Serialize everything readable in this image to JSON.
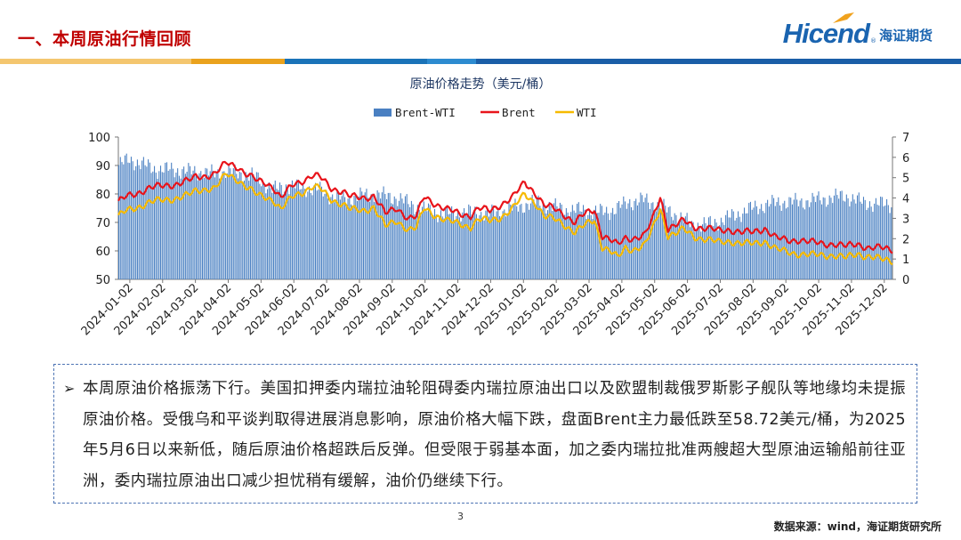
{
  "header": {
    "section_title": "一、本周原油行情回顾",
    "logo_en": "Hicend",
    "logo_reg": "®",
    "logo_cn": "海证期货"
  },
  "band_colors": [
    "#f4c66f",
    "#eaa21d",
    "#1a73b8",
    "#2d8bd0",
    "#1a5ea7"
  ],
  "chart_data": {
    "type": "bar+line",
    "title": "原油价格走势（美元/桶）",
    "legend": [
      "Brent-WTI",
      "Brent",
      "WTI"
    ],
    "legend_position": "top-center",
    "colors": {
      "Brent-WTI": "#4a80c2",
      "Brent": "#e8141b",
      "WTI": "#f6ba00"
    },
    "left_axis": {
      "ylim": [
        50,
        100
      ],
      "ticks": [
        "100",
        "90",
        "80",
        "70",
        "60",
        "50"
      ]
    },
    "right_axis": {
      "ylim": [
        0,
        7
      ],
      "ticks": [
        "7",
        "6",
        "5",
        "4",
        "3",
        "2",
        "1",
        "0"
      ]
    },
    "x_range": [
      "2024-01-02",
      "2025-12-31"
    ],
    "x_tick_labels": [
      "2024-01-02",
      "2024-02-02",
      "2024-03-02",
      "2024-04-02",
      "2024-05-02",
      "2024-06-02",
      "2024-07-02",
      "2024-08-02",
      "2024-09-02",
      "2024-10-02",
      "2024-11-02",
      "2024-12-02",
      "2025-01-02",
      "2025-02-02",
      "2025-03-02",
      "2025-04-02",
      "2025-05-02",
      "2025-06-02",
      "2025-07-02",
      "2025-08-02",
      "2025-09-02",
      "2025-10-02",
      "2025-11-02",
      "2025-12-02"
    ],
    "series": [
      {
        "name": "Brent",
        "axis": "left",
        "x": [
          0,
          0.01,
          0.025,
          0.04,
          0.06,
          0.075,
          0.09,
          0.1,
          0.115,
          0.125,
          0.14,
          0.155,
          0.165,
          0.18,
          0.19,
          0.2,
          0.21,
          0.225,
          0.24,
          0.25,
          0.26,
          0.275,
          0.29,
          0.3,
          0.315,
          0.33,
          0.345,
          0.36,
          0.375,
          0.385,
          0.395,
          0.41,
          0.425,
          0.44,
          0.455,
          0.465,
          0.48,
          0.495,
          0.51,
          0.525,
          0.54,
          0.55,
          0.565,
          0.575,
          0.59,
          0.6,
          0.615,
          0.625,
          0.635,
          0.645,
          0.655,
          0.665,
          0.68,
          0.69,
          0.7,
          0.71,
          0.72,
          0.73,
          0.745,
          0.76,
          0.775,
          0.79,
          0.805,
          0.82,
          0.835,
          0.85,
          0.865,
          0.88,
          0.895,
          0.91,
          0.925,
          0.94,
          0.955,
          0.97,
          0.985,
          1.0
        ],
        "values": [
          77,
          79,
          80.5,
          82,
          83,
          83.5,
          84.5,
          86,
          86.5,
          87,
          91,
          89.5,
          87,
          84.5,
          84,
          82.5,
          78.5,
          83,
          85,
          86.5,
          86,
          82,
          81,
          79,
          78.5,
          79.5,
          73,
          75,
          71.5,
          72,
          79,
          76.5,
          74.5,
          73,
          72.5,
          75,
          74,
          76.5,
          79,
          84,
          80,
          76,
          74.5,
          73,
          70,
          72.5,
          74.5,
          65.5,
          64,
          62,
          64.5,
          64.5,
          65.5,
          71,
          79,
          68,
          69,
          70.5,
          68.5,
          68,
          67,
          67.5,
          66.5,
          66.5,
          68,
          64.5,
          63.5,
          64,
          63,
          62.5,
          62.5,
          61.5,
          62.5,
          61,
          61,
          60.5
        ]
      },
      {
        "name": "WTI",
        "axis": "left",
        "x": [
          0,
          0.01,
          0.025,
          0.04,
          0.06,
          0.075,
          0.09,
          0.1,
          0.115,
          0.125,
          0.14,
          0.155,
          0.165,
          0.18,
          0.19,
          0.2,
          0.21,
          0.225,
          0.24,
          0.25,
          0.26,
          0.275,
          0.29,
          0.3,
          0.315,
          0.33,
          0.345,
          0.36,
          0.375,
          0.385,
          0.395,
          0.41,
          0.425,
          0.44,
          0.455,
          0.465,
          0.48,
          0.495,
          0.51,
          0.525,
          0.54,
          0.55,
          0.565,
          0.575,
          0.59,
          0.6,
          0.615,
          0.625,
          0.635,
          0.645,
          0.655,
          0.665,
          0.68,
          0.69,
          0.7,
          0.71,
          0.72,
          0.73,
          0.745,
          0.76,
          0.775,
          0.79,
          0.805,
          0.82,
          0.835,
          0.85,
          0.865,
          0.88,
          0.895,
          0.91,
          0.925,
          0.94,
          0.955,
          0.97,
          0.985,
          1.0
        ],
        "values": [
          72,
          74,
          75.5,
          77,
          78,
          78.5,
          79.5,
          81,
          82,
          82,
          87,
          85,
          82.5,
          79.5,
          79,
          78,
          74.5,
          79,
          81,
          82.5,
          82,
          78,
          76.5,
          74.5,
          74,
          75.5,
          68.5,
          70.5,
          67.5,
          68,
          75,
          72.5,
          70.5,
          69.5,
          68.5,
          71,
          70.5,
          72,
          75,
          80,
          76.5,
          72,
          71,
          69.5,
          66.5,
          68.5,
          71,
          61.5,
          60,
          57.5,
          61,
          60.5,
          62,
          67.5,
          75,
          65.5,
          66,
          67.5,
          65,
          64,
          63,
          63.5,
          62.5,
          62.5,
          63.5,
          60.5,
          59.5,
          59,
          58.5,
          58.5,
          58.5,
          57.5,
          59,
          58,
          57,
          56.5
        ]
      },
      {
        "name": "Brent-WTI",
        "axis": "right",
        "x": [
          0,
          0.015,
          0.035,
          0.05,
          0.07,
          0.09,
          0.1,
          0.12,
          0.14,
          0.16,
          0.18,
          0.2,
          0.22,
          0.24,
          0.26,
          0.28,
          0.3,
          0.33,
          0.36,
          0.39,
          0.42,
          0.45,
          0.48,
          0.5,
          0.52,
          0.54,
          0.56,
          0.58,
          0.6,
          0.62,
          0.64,
          0.66,
          0.68,
          0.7,
          0.72,
          0.74,
          0.76,
          0.78,
          0.8,
          0.82,
          0.84,
          0.86,
          0.88,
          0.9,
          0.92,
          0.94,
          0.96,
          0.98,
          1.0
        ],
        "values": [
          5.6,
          5.9,
          5.6,
          5.4,
          5.4,
          5.3,
          5.3,
          5.2,
          5.3,
          5.2,
          5.0,
          4.4,
          4.6,
          4.5,
          4.4,
          4.0,
          4.0,
          4.2,
          4.0,
          3.5,
          3.2,
          3.3,
          3.2,
          3.4,
          3.6,
          3.8,
          3.6,
          3.4,
          3.4,
          3.3,
          3.4,
          3.8,
          3.9,
          3.6,
          3.2,
          2.7,
          2.7,
          2.9,
          3.2,
          3.5,
          3.7,
          3.8,
          3.8,
          3.9,
          4.0,
          4.1,
          3.8,
          3.7,
          3.7
        ]
      }
    ]
  },
  "commentary": {
    "bullet": "➢",
    "text": "本周原油价格振荡下行。美国扣押委内瑞拉油轮阻碍委内瑞拉原油出口以及欧盟制裁俄罗斯影子舰队等地缘均未提振原油价格。受俄乌和平谈判取得进展消息影响，原油价格大幅下跌，盘面Brent主力最低跌至58.72美元/桶，为2025年5月6日以来新低，随后原油价格超跌后反弹。但受限于弱基本面，加之委内瑞拉批准两艘超大型原油运输船前往亚洲，委内瑞拉原油出口减少担忧稍有缓解，油价仍继续下行。"
  },
  "footer": {
    "page_number": "3",
    "source": "数据来源：wind，海证期货研究所"
  }
}
